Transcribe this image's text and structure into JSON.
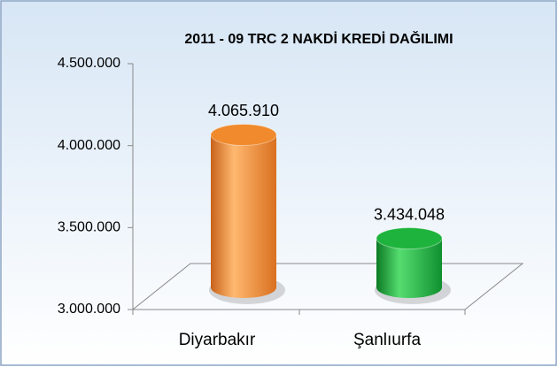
{
  "chart_data": {
    "type": "bar3d",
    "title": "2011 - 09 TRC 2 NAKDİ KREDİ DAĞILIMI",
    "categories": [
      "Diyarbakır",
      "Şanlıurfa"
    ],
    "values": [
      4065910,
      3434048
    ],
    "value_labels": [
      "4.065.910",
      "3.434.048"
    ],
    "colors": [
      "#f08a2c",
      "#1db33c"
    ],
    "ylim": [
      3000000,
      4500000
    ],
    "yticks": [
      {
        "value": 3000000,
        "label": "3.000.000"
      },
      {
        "value": 3500000,
        "label": "3.500.000"
      },
      {
        "value": 4000000,
        "label": "4.000.000"
      },
      {
        "value": 4500000,
        "label": "4.500.000"
      }
    ]
  }
}
